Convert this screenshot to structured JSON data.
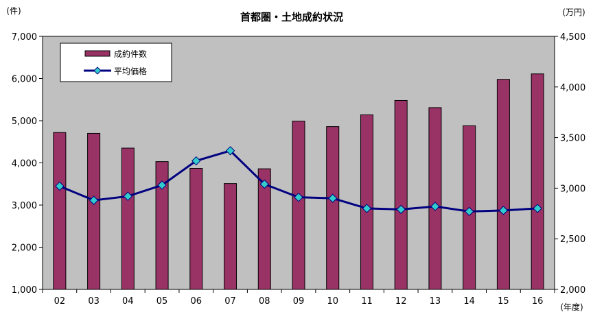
{
  "chart_data": {
    "type": "bar",
    "title": "首都圏・土地成約状況",
    "categories": [
      "02",
      "03",
      "04",
      "05",
      "06",
      "07",
      "08",
      "09",
      "10",
      "11",
      "12",
      "13",
      "14",
      "15",
      "16"
    ],
    "series": [
      {
        "name": "成約件数",
        "type": "bar",
        "axis": "left",
        "color": "#993366",
        "values": [
          4720,
          4700,
          4350,
          4030,
          3870,
          3510,
          3860,
          4990,
          4860,
          5140,
          5480,
          5310,
          4880,
          5980,
          6110
        ]
      },
      {
        "name": "平均価格",
        "type": "line",
        "axis": "right",
        "color": "#000080",
        "marker_color": "#33CCCC",
        "values": [
          3020,
          2880,
          2920,
          3030,
          3270,
          3370,
          3040,
          2910,
          2900,
          2800,
          2790,
          2820,
          2770,
          2780,
          2800
        ]
      }
    ],
    "y_left": {
      "unit": "(件)",
      "ylim": [
        1000,
        7000
      ],
      "ticks": [
        "1,000",
        "2,000",
        "3,000",
        "4,000",
        "5,000",
        "6,000",
        "7,000"
      ]
    },
    "y_right": {
      "unit": "(万円)",
      "ylim": [
        2000,
        4500
      ],
      "ticks": [
        "2,000",
        "2,500",
        "3,000",
        "3,500",
        "4,000",
        "4,500"
      ]
    },
    "x_unit": "(年度)",
    "legend": {
      "position": "top-left",
      "items": [
        "成約件数",
        "平均価格"
      ]
    },
    "plot_background": "#C0C0C0",
    "grid": false
  }
}
